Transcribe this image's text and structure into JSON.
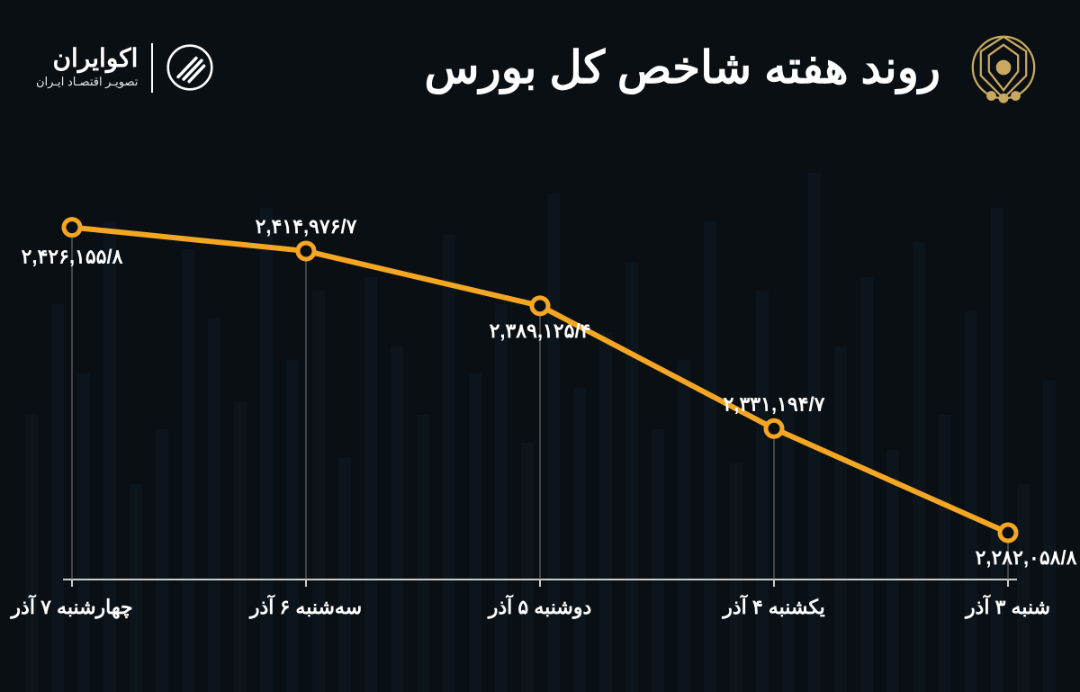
{
  "title": "روند هفته شاخص کل بورس",
  "brand": {
    "name": "اکوایران",
    "subtitle": "تصویـر اقتصـاد ایـران"
  },
  "chart": {
    "type": "line",
    "line_color": "#f5a623",
    "line_width": 6,
    "marker_fill": "#0a0f14",
    "marker_stroke": "#f5a623",
    "marker_stroke_width": 5,
    "marker_radius": 9,
    "background_color": "#0a0f14",
    "drop_line_color": "#7a7a7a",
    "drop_line_width": 1,
    "axis_color": "#cccccc",
    "text_color": "#ffffff",
    "label_fontsize": 22,
    "ylim_min": 2260000,
    "ylim_max": 2440000,
    "points": [
      {
        "x_label": "شنبه ۳ آذر",
        "value_label": "۲,۲۸۲,۰۵۸/۸",
        "value": 2282058.8
      },
      {
        "x_label": "یکشنبه ۴ آذر",
        "value_label": "۲,۳۳۱,۱۹۴/۷",
        "value": 2331194.7
      },
      {
        "x_label": "دوشنبه ۵ آذر",
        "value_label": "۲,۳۸۹,۱۲۵/۴",
        "value": 2389125.4
      },
      {
        "x_label": "سه‌شنبه ۶ آذر",
        "value_label": "۲,۴۱۴,۹۷۶/۷",
        "value": 2414976.7
      },
      {
        "x_label": "چهارشنبه ۷ آذر",
        "value_label": "۲,۴۲۶,۱۵۵/۸",
        "value": 2426155.8
      }
    ]
  },
  "bg_bar_heights": [
    45,
    30,
    70,
    55,
    40,
    65,
    35,
    60,
    50,
    75,
    42,
    58,
    33,
    68,
    48,
    38,
    62,
    52,
    44,
    72,
    36,
    56,
    46,
    66,
    40,
    50,
    60,
    34,
    58,
    48,
    70,
    42,
    54,
    64,
    38,
    30,
    68,
    46,
    56,
    40
  ]
}
